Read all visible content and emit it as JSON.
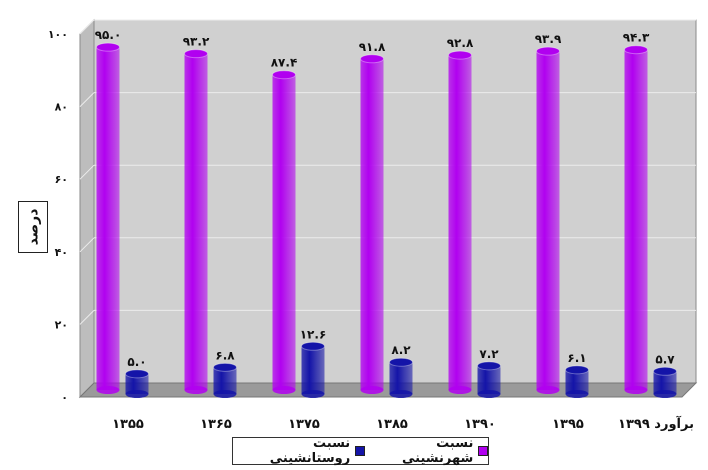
{
  "chart_data": {
    "type": "bar",
    "categories": [
      "۱۳۵۵",
      "۱۳۶۵",
      "۱۳۷۵",
      "۱۳۸۵",
      "۱۳۹۰",
      "۱۳۹۵",
      "برآورد ۱۳۹۹"
    ],
    "series": [
      {
        "name": "نسبت شهرنشینی",
        "values": [
          95.0,
          93.2,
          87.4,
          91.8,
          92.8,
          93.9,
          94.3
        ],
        "value_labels": [
          "۹۵.۰",
          "۹۳.۲",
          "۸۷.۴",
          "۹۱.۸",
          "۹۲.۸",
          "۹۳.۹",
          "۹۴.۳"
        ],
        "color": "#b100f0"
      },
      {
        "name": "نسبت روستانشینی",
        "values": [
          5.0,
          6.8,
          12.6,
          8.2,
          7.2,
          6.1,
          5.7
        ],
        "value_labels": [
          "۵.۰",
          "۶.۸",
          "۱۲.۶",
          "۸.۲",
          "۷.۲",
          "۶.۱",
          "۵.۷"
        ],
        "color": "#1414a8"
      }
    ],
    "ylabel": "درصد",
    "ylim": [
      0,
      100
    ],
    "yticks": [
      0,
      20,
      40,
      60,
      80,
      100
    ],
    "ytick_labels": [
      "۰",
      "۲۰",
      "۴۰",
      "۶۰",
      "۸۰",
      "۱۰۰"
    ],
    "grid": true,
    "legend_position": "bottom",
    "style": "3d-cylinder"
  },
  "colors": {
    "plot_background": "#d0d0d0",
    "grid": "#ececec",
    "floor": "#9a9a9a"
  }
}
